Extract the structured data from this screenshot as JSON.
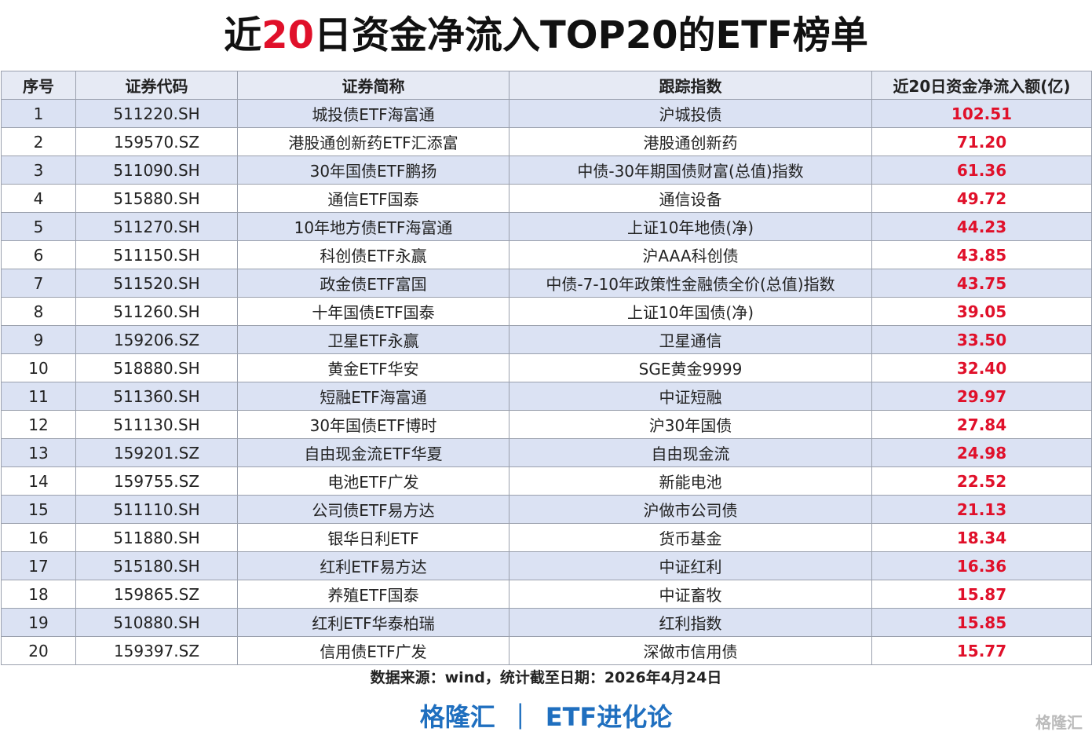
{
  "title": [
    "近",
    "20",
    "日资金净流入TOP20的ETF榜单"
  ],
  "table": {
    "header": [
      "序号",
      "证券代码",
      "证券简称",
      "跟踪指数",
      "近20日资金净流入额(亿)"
    ],
    "rows": [
      [
        "1",
        "511220.SH",
        "城投债ETF海富通",
        "沪城投债",
        "102.51"
      ],
      [
        "2",
        "159570.SZ",
        "港股通创新药ETF汇添富",
        "港股通创新药",
        "71.20"
      ],
      [
        "3",
        "511090.SH",
        "30年国债ETF鹏扬",
        "中债-30年期国债财富(总值)指数",
        "61.36"
      ],
      [
        "4",
        "515880.SH",
        "通信ETF国泰",
        "通信设备",
        "49.72"
      ],
      [
        "5",
        "511270.SH",
        "10年地方债ETF海富通",
        "上证10年地债(净)",
        "44.23"
      ],
      [
        "6",
        "511150.SH",
        "科创债ETF永赢",
        "沪AAA科创债",
        "43.85"
      ],
      [
        "7",
        "511520.SH",
        "政金债ETF富国",
        "中债-7-10年政策性金融债全价(总值)指数",
        "43.75"
      ],
      [
        "8",
        "511260.SH",
        "十年国债ETF国泰",
        "上证10年国债(净)",
        "39.05"
      ],
      [
        "9",
        "159206.SZ",
        "卫星ETF永赢",
        "卫星通信",
        "33.50"
      ],
      [
        "10",
        "518880.SH",
        "黄金ETF华安",
        "SGE黄金9999",
        "32.40"
      ],
      [
        "11",
        "511360.SH",
        "短融ETF海富通",
        "中证短融",
        "29.97"
      ],
      [
        "12",
        "511130.SH",
        "30年国债ETF博时",
        "沪30年国债",
        "27.84"
      ],
      [
        "13",
        "159201.SZ",
        "自由现金流ETF华夏",
        "自由现金流",
        "24.98"
      ],
      [
        "14",
        "159755.SZ",
        "电池ETF广发",
        "新能电池",
        "22.52"
      ],
      [
        "15",
        "511110.SH",
        "公司债ETF易方达",
        "沪做市公司债",
        "21.13"
      ],
      [
        "16",
        "511880.SH",
        "银华日利ETF",
        "货币基金",
        "18.34"
      ],
      [
        "17",
        "515180.SH",
        "红利ETF易方达",
        "中证红利",
        "16.36"
      ],
      [
        "18",
        "159865.SZ",
        "养殖ETF国泰",
        "中证畜牧",
        "15.87"
      ],
      [
        "19",
        "510880.SH",
        "红利ETF华泰柏瑞",
        "红利指数",
        "15.85"
      ],
      [
        "20",
        "159397.SZ",
        "信用债ETF广发",
        "深做市信用债",
        "15.77"
      ]
    ]
  },
  "footer": {
    "source": "数据来源：wind，统计截至日期：2026年4月24日",
    "brand": "格隆汇",
    "separator": "｜",
    "column": "ETF进化论"
  },
  "watermark": "格隆汇"
}
